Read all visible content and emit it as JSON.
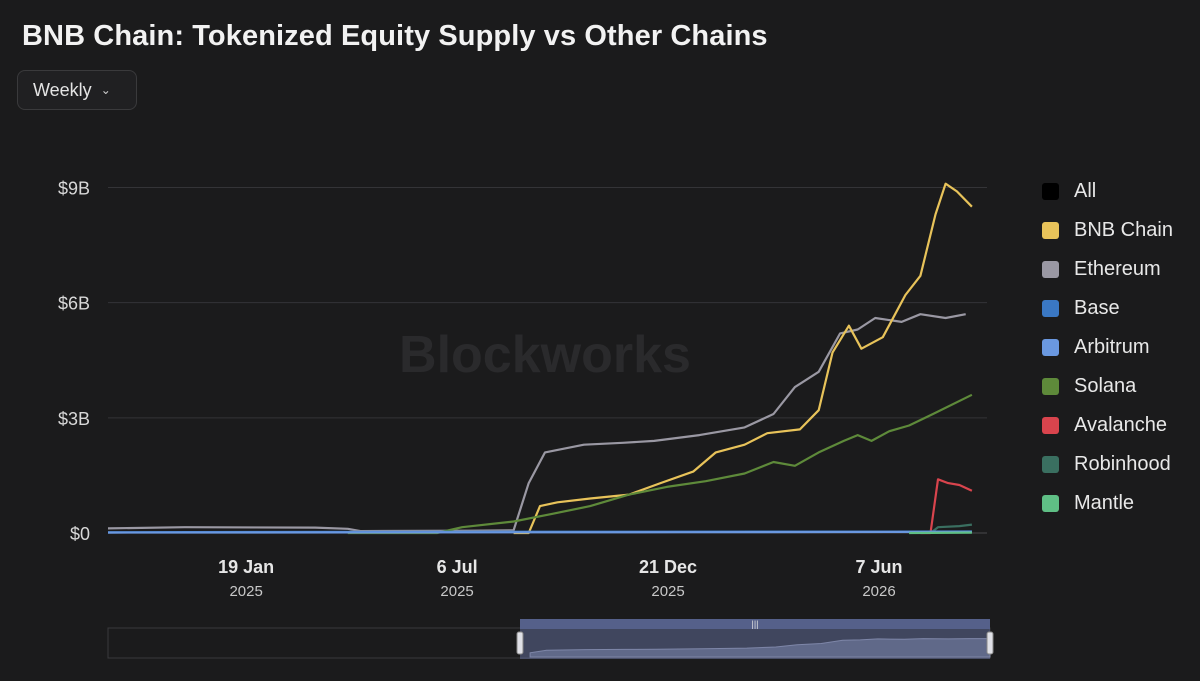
{
  "header": {
    "title": "BNB Chain: Tokenized Equity Supply vs Other Chains"
  },
  "controls": {
    "period_label": "Weekly",
    "period_icon": "chevron-down-icon"
  },
  "watermark": "Blockworks",
  "legend": [
    {
      "label": "All",
      "color": "#000000"
    },
    {
      "label": "BNB Chain",
      "color": "#e8c35a"
    },
    {
      "label": "Ethereum",
      "color": "#9a98a3"
    },
    {
      "label": "Base",
      "color": "#3a78c4"
    },
    {
      "label": "Arbitrum",
      "color": "#6a98e0"
    },
    {
      "label": "Solana",
      "color": "#5e8a3a"
    },
    {
      "label": "Avalanche",
      "color": "#d9444d"
    },
    {
      "label": "Robinhood",
      "color": "#3a6f60"
    },
    {
      "label": "Mantle",
      "color": "#5fbf85"
    }
  ],
  "chart_data": {
    "type": "line",
    "x_unit": "date",
    "y_unit": "USD",
    "ylim": [
      0,
      9300000000
    ],
    "xlim": [
      "2024-10-01",
      "2026-09-01"
    ],
    "y_ticks": [
      {
        "value": 0,
        "label": "$0"
      },
      {
        "value": 3000000000,
        "label": "$3B"
      },
      {
        "value": 6000000000,
        "label": "$6B"
      },
      {
        "value": 9000000000,
        "label": "$9B"
      }
    ],
    "x_ticks": [
      {
        "date": "2025-01-19",
        "label": "19 Jan",
        "sub": "2025"
      },
      {
        "date": "2025-07-06",
        "label": "6 Jul",
        "sub": "2025"
      },
      {
        "date": "2025-12-21",
        "label": "21 Dec",
        "sub": "2025"
      },
      {
        "date": "2026-06-07",
        "label": "7 Jun",
        "sub": "2026"
      }
    ],
    "grid": true,
    "legend_position": "right",
    "series": [
      {
        "name": "Ethereum",
        "color": "#9a98a3",
        "points": [
          [
            "2024-10-01",
            120000000
          ],
          [
            "2024-12-01",
            150000000
          ],
          [
            "2025-03-15",
            140000000
          ],
          [
            "2025-04-10",
            110000000
          ],
          [
            "2025-04-20",
            50000000
          ],
          [
            "2025-07-15",
            60000000
          ],
          [
            "2025-08-20",
            70000000
          ],
          [
            "2025-09-01",
            1300000000
          ],
          [
            "2025-09-14",
            2100000000
          ],
          [
            "2025-10-15",
            2300000000
          ],
          [
            "2025-11-15",
            2350000000
          ],
          [
            "2025-12-10",
            2400000000
          ],
          [
            "2026-01-15",
            2550000000
          ],
          [
            "2026-02-20",
            2750000000
          ],
          [
            "2026-03-15",
            3100000000
          ],
          [
            "2026-04-01",
            3800000000
          ],
          [
            "2026-04-20",
            4200000000
          ],
          [
            "2026-05-07",
            5200000000
          ],
          [
            "2026-05-21",
            5300000000
          ],
          [
            "2026-06-04",
            5600000000
          ],
          [
            "2026-06-25",
            5500000000
          ],
          [
            "2026-07-10",
            5700000000
          ],
          [
            "2026-07-30",
            5600000000
          ],
          [
            "2026-08-15",
            5700000000
          ]
        ]
      },
      {
        "name": "BNB Chain",
        "color": "#e8c35a",
        "points": [
          [
            "2025-08-20",
            0
          ],
          [
            "2025-09-01",
            0
          ],
          [
            "2025-09-10",
            700000000
          ],
          [
            "2025-09-24",
            800000000
          ],
          [
            "2025-10-20",
            900000000
          ],
          [
            "2025-11-20",
            1000000000
          ],
          [
            "2025-12-15",
            1300000000
          ],
          [
            "2026-01-10",
            1600000000
          ],
          [
            "2026-01-28",
            2100000000
          ],
          [
            "2026-02-20",
            2300000000
          ],
          [
            "2026-03-10",
            2600000000
          ],
          [
            "2026-04-05",
            2700000000
          ],
          [
            "2026-04-20",
            3200000000
          ],
          [
            "2026-05-01",
            4700000000
          ],
          [
            "2026-05-14",
            5400000000
          ],
          [
            "2026-05-24",
            4800000000
          ],
          [
            "2026-06-10",
            5100000000
          ],
          [
            "2026-06-28",
            6200000000
          ],
          [
            "2026-07-10",
            6700000000
          ],
          [
            "2026-07-22",
            8300000000
          ],
          [
            "2026-07-30",
            9100000000
          ],
          [
            "2026-08-08",
            8900000000
          ],
          [
            "2026-08-20",
            8500000000
          ]
        ]
      },
      {
        "name": "Solana",
        "color": "#5e8a3a",
        "points": [
          [
            "2025-04-10",
            0
          ],
          [
            "2025-06-20",
            0
          ],
          [
            "2025-07-10",
            150000000
          ],
          [
            "2025-08-20",
            300000000
          ],
          [
            "2025-09-20",
            500000000
          ],
          [
            "2025-10-20",
            700000000
          ],
          [
            "2025-11-20",
            1000000000
          ],
          [
            "2025-12-20",
            1200000000
          ],
          [
            "2026-01-20",
            1350000000
          ],
          [
            "2026-02-20",
            1550000000
          ],
          [
            "2026-03-15",
            1850000000
          ],
          [
            "2026-04-01",
            1750000000
          ],
          [
            "2026-04-20",
            2100000000
          ],
          [
            "2026-05-10",
            2400000000
          ],
          [
            "2026-05-21",
            2550000000
          ],
          [
            "2026-06-01",
            2400000000
          ],
          [
            "2026-06-15",
            2650000000
          ],
          [
            "2026-07-01",
            2800000000
          ],
          [
            "2026-07-20",
            3100000000
          ],
          [
            "2026-08-20",
            3600000000
          ]
        ]
      },
      {
        "name": "Avalanche",
        "color": "#d9444d",
        "points": [
          [
            "2026-07-10",
            0
          ],
          [
            "2026-07-18",
            0
          ],
          [
            "2026-07-24",
            1400000000
          ],
          [
            "2026-08-01",
            1300000000
          ],
          [
            "2026-08-10",
            1250000000
          ],
          [
            "2026-08-20",
            1100000000
          ]
        ]
      },
      {
        "name": "Robinhood",
        "color": "#3a6f60",
        "points": [
          [
            "2026-07-18",
            0
          ],
          [
            "2026-07-24",
            150000000
          ],
          [
            "2026-08-10",
            180000000
          ],
          [
            "2026-08-20",
            220000000
          ]
        ]
      },
      {
        "name": "Base",
        "color": "#3a78c4",
        "points": [
          [
            "2024-10-01",
            20000000
          ],
          [
            "2025-06-01",
            30000000
          ],
          [
            "2026-08-20",
            40000000
          ]
        ]
      },
      {
        "name": "Arbitrum",
        "color": "#6a98e0",
        "points": [
          [
            "2024-10-01",
            10000000
          ],
          [
            "2026-01-01",
            20000000
          ],
          [
            "2026-08-20",
            30000000
          ]
        ]
      },
      {
        "name": "Mantle",
        "color": "#5fbf85",
        "points": [
          [
            "2026-07-01",
            0
          ],
          [
            "2026-08-20",
            10000000
          ]
        ]
      }
    ]
  }
}
